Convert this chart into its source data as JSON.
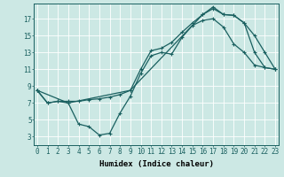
{
  "xlabel": "Humidex (Indice chaleur)",
  "bg_color": "#cce8e4",
  "line_color": "#1a6060",
  "grid_color": "#ffffff",
  "xlim": [
    -0.3,
    23.3
  ],
  "ylim": [
    2.0,
    18.8
  ],
  "xticks": [
    0,
    1,
    2,
    3,
    4,
    5,
    6,
    7,
    8,
    9,
    10,
    11,
    12,
    13,
    14,
    15,
    16,
    17,
    18,
    19,
    20,
    21,
    22,
    23
  ],
  "yticks": [
    3,
    5,
    7,
    9,
    11,
    13,
    15,
    17
  ],
  "line1_x": [
    0,
    1,
    2,
    3,
    4,
    5,
    6,
    7,
    8,
    9,
    16,
    17,
    18,
    19,
    20,
    21,
    22,
    23
  ],
  "line1_y": [
    8.5,
    7.0,
    7.2,
    7.2,
    7.2,
    7.4,
    7.5,
    7.7,
    8.0,
    8.5,
    17.5,
    18.2,
    17.5,
    17.4,
    16.5,
    13.0,
    11.2,
    11.0
  ],
  "line2_x": [
    0,
    3,
    4,
    5,
    6,
    7,
    8,
    9,
    10,
    11,
    12,
    13,
    14,
    15,
    16,
    17,
    18,
    19,
    20,
    21,
    22,
    23
  ],
  "line2_y": [
    8.5,
    7.0,
    4.5,
    4.2,
    3.2,
    3.4,
    5.8,
    7.8,
    10.5,
    12.6,
    13.0,
    12.8,
    14.8,
    16.2,
    16.8,
    17.0,
    16.0,
    14.0,
    13.0,
    11.5,
    11.2,
    11.0
  ],
  "line3_x": [
    0,
    1,
    2,
    3,
    9,
    10,
    11,
    12,
    13,
    14,
    15,
    16,
    17,
    18,
    19,
    20,
    21,
    22,
    23
  ],
  "line3_y": [
    8.5,
    7.0,
    7.2,
    7.0,
    8.5,
    11.0,
    13.2,
    13.5,
    14.2,
    15.4,
    16.5,
    17.5,
    18.4,
    17.5,
    17.4,
    16.5,
    15.0,
    13.0,
    11.0
  ],
  "marker_size": 2.5,
  "linewidth": 0.9,
  "xlabel_fontsize": 6.5,
  "tick_fontsize": 5.5
}
